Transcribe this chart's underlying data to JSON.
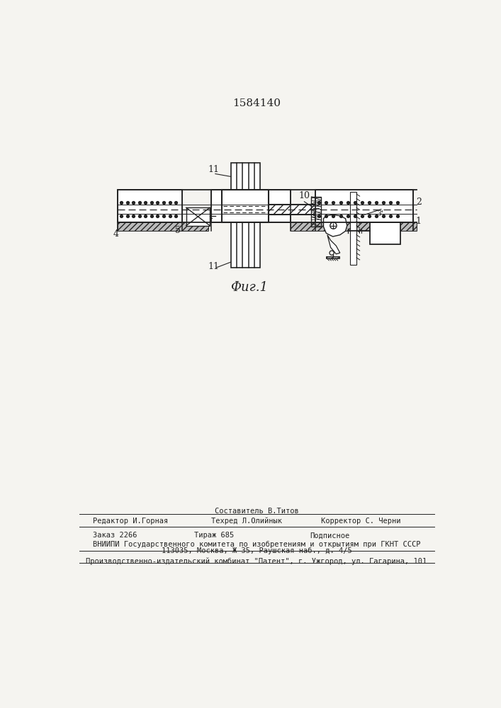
{
  "title": "1584140",
  "fig_label": "Фиг.1",
  "bg_color": "#f5f4f0",
  "lc": "#222222",
  "composer_line": "Составитель В.Титов",
  "editor_line": "Редактор И.Горная",
  "techred_line": "Техред Л.Олийнык",
  "corrector_line": "Корректор С. Черни",
  "order_line": "Заказ 2266",
  "tirazh_line": "Тираж 685",
  "podpisnoe_line": "Подписное",
  "vniip_line": "ВНИИПИ Государственного комитета по изобретениям и открытиям при ГКНТ СССР",
  "address_line": "113035, Москва, Ж-35, Раушская наб., д. 4/5",
  "patent_line": "Производственно-издательский комбинат \"Патент\", г. Ужгород, ул. Гагарина, 101"
}
